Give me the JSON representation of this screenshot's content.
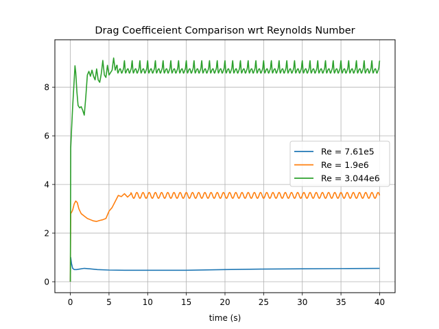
{
  "chart_data": {
    "type": "line",
    "title": "Drag Coefficeient Comparison wrt Reynolds Number",
    "xlabel": "time (s)",
    "ylabel": "",
    "xlim": [
      -2,
      42
    ],
    "ylim": [
      -0.45,
      9.95
    ],
    "xticks": [
      0,
      5,
      10,
      15,
      20,
      25,
      30,
      35,
      40
    ],
    "yticks": [
      0,
      2,
      4,
      6,
      8
    ],
    "grid": true,
    "legend_position": "center-right",
    "series": [
      {
        "name": "Re = 7.61e5",
        "color": "#1f77b4",
        "x": [
          0,
          0.05,
          0.15,
          0.3,
          0.5,
          0.8,
          1.2,
          1.8,
          2.5,
          3.5,
          5,
          7,
          10,
          15,
          20,
          25,
          30,
          35,
          40
        ],
        "y": [
          0.0,
          1.0,
          0.75,
          0.55,
          0.5,
          0.5,
          0.52,
          0.55,
          0.53,
          0.5,
          0.48,
          0.47,
          0.47,
          0.47,
          0.5,
          0.52,
          0.53,
          0.54,
          0.55
        ]
      },
      {
        "name": "Re = 1.9e6",
        "color": "#ff7f0e",
        "x": [
          0,
          0.05,
          0.15,
          0.3,
          0.5,
          0.7,
          0.9,
          1.1,
          1.4,
          1.8,
          2.2,
          2.6,
          3.0,
          3.4,
          3.8,
          4.2,
          4.6,
          5.0,
          5.4,
          5.8,
          6.2,
          6.6,
          7.0,
          7.4,
          7.8
        ],
        "y": [
          0.0,
          2.8,
          2.85,
          2.95,
          3.2,
          3.32,
          3.25,
          3.0,
          2.8,
          2.7,
          2.6,
          2.55,
          2.5,
          2.48,
          2.52,
          2.55,
          2.6,
          2.9,
          3.05,
          3.3,
          3.55,
          3.5,
          3.62,
          3.48,
          3.6
        ],
        "osc_mean": 3.55,
        "osc_amplitude": 0.12,
        "osc_period": 0.8,
        "osc_until": 40
      },
      {
        "name": "Re = 3.044e6",
        "color": "#2ca02c",
        "x": [
          0,
          0.05,
          0.15,
          0.3,
          0.5,
          0.6,
          0.7,
          0.85,
          1.0,
          1.2,
          1.4,
          1.6,
          1.8,
          2.0,
          2.2,
          2.4,
          2.6,
          2.8,
          3.0,
          3.2,
          3.4,
          3.6,
          3.8,
          4.0,
          4.2,
          4.4,
          4.6,
          4.8,
          5.0,
          5.2,
          5.4,
          5.6,
          5.8,
          6.0
        ],
        "y": [
          0.0,
          5.5,
          6.2,
          7.2,
          8.3,
          8.88,
          8.6,
          7.8,
          7.25,
          7.15,
          7.2,
          7.05,
          6.85,
          7.6,
          8.5,
          8.65,
          8.45,
          8.7,
          8.45,
          8.3,
          8.75,
          8.3,
          8.2,
          8.55,
          9.1,
          8.5,
          8.4,
          8.9,
          8.5,
          8.6,
          8.7,
          9.2,
          8.7,
          8.9
        ],
        "osc_mean": 9.0,
        "osc_amplitude": 0.4,
        "osc_period": 1.0,
        "osc_until": 40
      }
    ]
  }
}
